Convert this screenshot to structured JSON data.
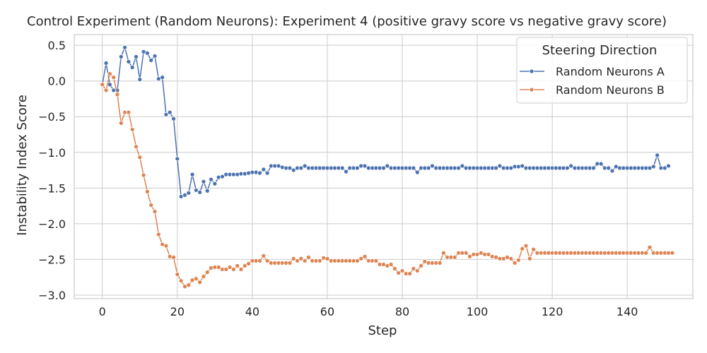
{
  "chart_data": {
    "type": "line",
    "title": "Control Experiment (Random Neurons): Experiment 4 (positive gravy score vs negative gravy score)",
    "xlabel": "Step",
    "ylabel": "Instability Index Score",
    "xlim": [
      -7.5,
      157.5
    ],
    "ylim": [
      -3.05,
      0.65
    ],
    "xticks": [
      0,
      20,
      40,
      60,
      80,
      100,
      120,
      140
    ],
    "xtick_labels": [
      "0",
      "20",
      "40",
      "60",
      "80",
      "100",
      "120",
      "140"
    ],
    "yticks": [
      0.5,
      0.0,
      -0.5,
      -1.0,
      -1.5,
      -2.0,
      -2.5,
      -3.0
    ],
    "ytick_labels": [
      "0.5",
      "0.0",
      "−0.5",
      "−1.0",
      "−1.5",
      "−2.0",
      "−2.5",
      "−3.0"
    ],
    "grid": true,
    "legend_title": "Steering Direction",
    "legend_position": "top-right",
    "markers": true,
    "series": [
      {
        "name": "Random Neurons A",
        "color": "#4c72b0",
        "values": [
          -0.05,
          0.25,
          -0.05,
          -0.13,
          -0.13,
          0.34,
          0.47,
          0.27,
          0.19,
          0.34,
          0.02,
          0.41,
          0.39,
          0.29,
          0.35,
          0.03,
          0.05,
          -0.47,
          -0.44,
          -0.53,
          -1.09,
          -1.62,
          -1.6,
          -1.57,
          -1.31,
          -1.53,
          -1.56,
          -1.41,
          -1.54,
          -1.38,
          -1.44,
          -1.35,
          -1.34,
          -1.31,
          -1.31,
          -1.31,
          -1.31,
          -1.3,
          -1.3,
          -1.29,
          -1.28,
          -1.28,
          -1.29,
          -1.24,
          -1.29,
          -1.19,
          -1.19,
          -1.19,
          -1.21,
          -1.22,
          -1.22,
          -1.25,
          -1.22,
          -1.22,
          -1.19,
          -1.22,
          -1.22,
          -1.22,
          -1.22,
          -1.22,
          -1.22,
          -1.22,
          -1.22,
          -1.22,
          -1.22,
          -1.27,
          -1.22,
          -1.22,
          -1.22,
          -1.19,
          -1.19,
          -1.22,
          -1.22,
          -1.22,
          -1.22,
          -1.22,
          -1.19,
          -1.22,
          -1.22,
          -1.22,
          -1.22,
          -1.22,
          -1.22,
          -1.22,
          -1.28,
          -1.22,
          -1.22,
          -1.22,
          -1.19,
          -1.22,
          -1.22,
          -1.22,
          -1.22,
          -1.22,
          -1.22,
          -1.22,
          -1.19,
          -1.22,
          -1.22,
          -1.22,
          -1.22,
          -1.22,
          -1.22,
          -1.22,
          -1.22,
          -1.22,
          -1.19,
          -1.22,
          -1.22,
          -1.22,
          -1.2,
          -1.2,
          -1.19,
          -1.22,
          -1.22,
          -1.22,
          -1.22,
          -1.22,
          -1.22,
          -1.22,
          -1.22,
          -1.22,
          -1.22,
          -1.22,
          -1.22,
          -1.19,
          -1.22,
          -1.22,
          -1.22,
          -1.22,
          -1.22,
          -1.22,
          -1.16,
          -1.16,
          -1.22,
          -1.22,
          -1.26,
          -1.2,
          -1.22,
          -1.22,
          -1.22,
          -1.22,
          -1.22,
          -1.22,
          -1.22,
          -1.22,
          -1.22,
          -1.2,
          -1.04,
          -1.22,
          -1.22,
          -1.19
        ]
      },
      {
        "name": "Random Neurons B",
        "color": "#dd8452",
        "values": [
          -0.05,
          -0.13,
          0.1,
          0.05,
          -0.19,
          -0.59,
          -0.44,
          -0.44,
          -0.68,
          -0.92,
          -1.07,
          -1.32,
          -1.55,
          -1.74,
          -1.83,
          -2.15,
          -2.29,
          -2.31,
          -2.46,
          -2.47,
          -2.71,
          -2.8,
          -2.88,
          -2.86,
          -2.79,
          -2.77,
          -2.82,
          -2.74,
          -2.68,
          -2.62,
          -2.61,
          -2.61,
          -2.64,
          -2.64,
          -2.61,
          -2.64,
          -2.59,
          -2.64,
          -2.59,
          -2.56,
          -2.52,
          -2.52,
          -2.52,
          -2.45,
          -2.52,
          -2.55,
          -2.55,
          -2.55,
          -2.55,
          -2.55,
          -2.55,
          -2.49,
          -2.52,
          -2.49,
          -2.52,
          -2.47,
          -2.52,
          -2.52,
          -2.52,
          -2.48,
          -2.49,
          -2.52,
          -2.52,
          -2.52,
          -2.52,
          -2.52,
          -2.52,
          -2.52,
          -2.52,
          -2.49,
          -2.46,
          -2.52,
          -2.52,
          -2.52,
          -2.57,
          -2.57,
          -2.59,
          -2.57,
          -2.63,
          -2.69,
          -2.66,
          -2.7,
          -2.7,
          -2.63,
          -2.66,
          -2.59,
          -2.53,
          -2.55,
          -2.55,
          -2.55,
          -2.55,
          -2.41,
          -2.47,
          -2.47,
          -2.47,
          -2.41,
          -2.41,
          -2.41,
          -2.46,
          -2.43,
          -2.43,
          -2.41,
          -2.43,
          -2.43,
          -2.46,
          -2.47,
          -2.49,
          -2.49,
          -2.47,
          -2.49,
          -2.55,
          -2.51,
          -2.35,
          -2.31,
          -2.49,
          -2.36,
          -2.41,
          -2.41,
          -2.41,
          -2.41,
          -2.41,
          -2.41,
          -2.41,
          -2.41,
          -2.41,
          -2.41,
          -2.41,
          -2.41,
          -2.41,
          -2.41,
          -2.41,
          -2.41,
          -2.41,
          -2.41,
          -2.41,
          -2.41,
          -2.41,
          -2.41,
          -2.41,
          -2.41,
          -2.41,
          -2.41,
          -2.41,
          -2.41,
          -2.41,
          -2.41,
          -2.33,
          -2.41,
          -2.41,
          -2.41,
          -2.41,
          -2.41,
          -2.41
        ]
      }
    ]
  }
}
